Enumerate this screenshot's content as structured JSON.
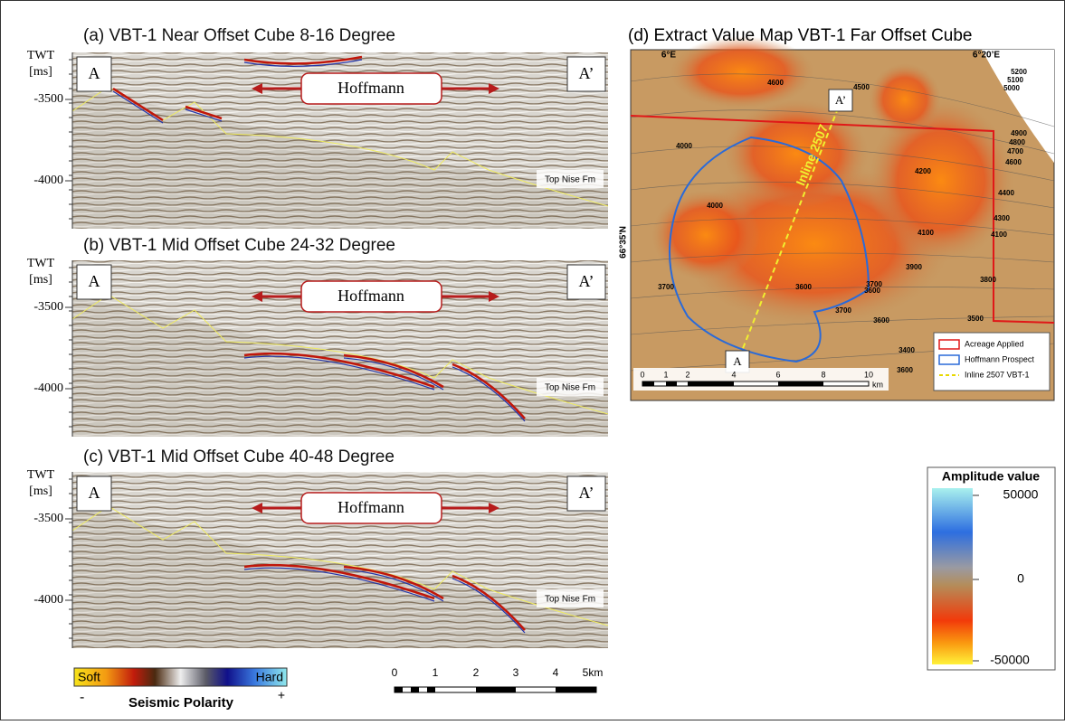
{
  "panels": [
    {
      "title": "(a) VBT-1 Near Offset Cube 8-16 Degree",
      "axis_label": [
        "TWT",
        "[ms]"
      ],
      "ticks": [
        "-3500",
        "-4000"
      ],
      "left_marker": "A",
      "right_marker": "A’",
      "prospect": "Hoffmann",
      "horizon": "Top Nise Fm"
    },
    {
      "title": "(b) VBT-1 Mid Offset Cube 24-32 Degree",
      "axis_label": [
        "TWT",
        "[ms]"
      ],
      "ticks": [
        "-3500",
        "-4000"
      ],
      "left_marker": "A",
      "right_marker": "A’",
      "prospect": "Hoffmann",
      "horizon": "Top Nise Fm"
    },
    {
      "title": "(c) VBT-1 Mid Offset Cube 40-48 Degree",
      "axis_label": [
        "TWT",
        "[ms]"
      ],
      "ticks": [
        "-3500",
        "-4000"
      ],
      "left_marker": "A",
      "right_marker": "A’",
      "prospect": "Hoffmann",
      "horizon": "Top Nise Fm"
    }
  ],
  "polarity": {
    "soft": "Soft",
    "hard": "Hard",
    "minus": "-",
    "plus": "+",
    "title": "Seismic Polarity"
  },
  "section_scale": [
    "0",
    "1",
    "2",
    "3",
    "4",
    "5km"
  ],
  "map": {
    "title": "(d) Extract Value Map VBT-1 Far Offset Cube",
    "lon_labels": [
      "6°E",
      "6°20’E"
    ],
    "lat_label": "66°35'N",
    "markers": [
      "A’",
      "A"
    ],
    "inline_label": "Inline 2507",
    "contours": [
      "4600",
      "4500",
      "5200",
      "5100",
      "5000",
      "4900",
      "4800",
      "4700",
      "4600",
      "4000",
      "4200",
      "4400",
      "4000",
      "4300",
      "4100",
      "4100",
      "3900",
      "3800",
      "3700",
      "3600",
      "3600",
      "3700",
      "3600",
      "3500",
      "3400",
      "3600",
      "3700"
    ],
    "scale": [
      "0",
      "1",
      "2",
      "4",
      "6",
      "8",
      "10",
      "km"
    ],
    "legend": [
      "Acreage Applied",
      "Hoffmann Prospect",
      "Inline 2507 VBT-1"
    ]
  },
  "colorbar": {
    "title": "Amplitude value",
    "labels": [
      "50000",
      "0",
      "-50000"
    ]
  }
}
